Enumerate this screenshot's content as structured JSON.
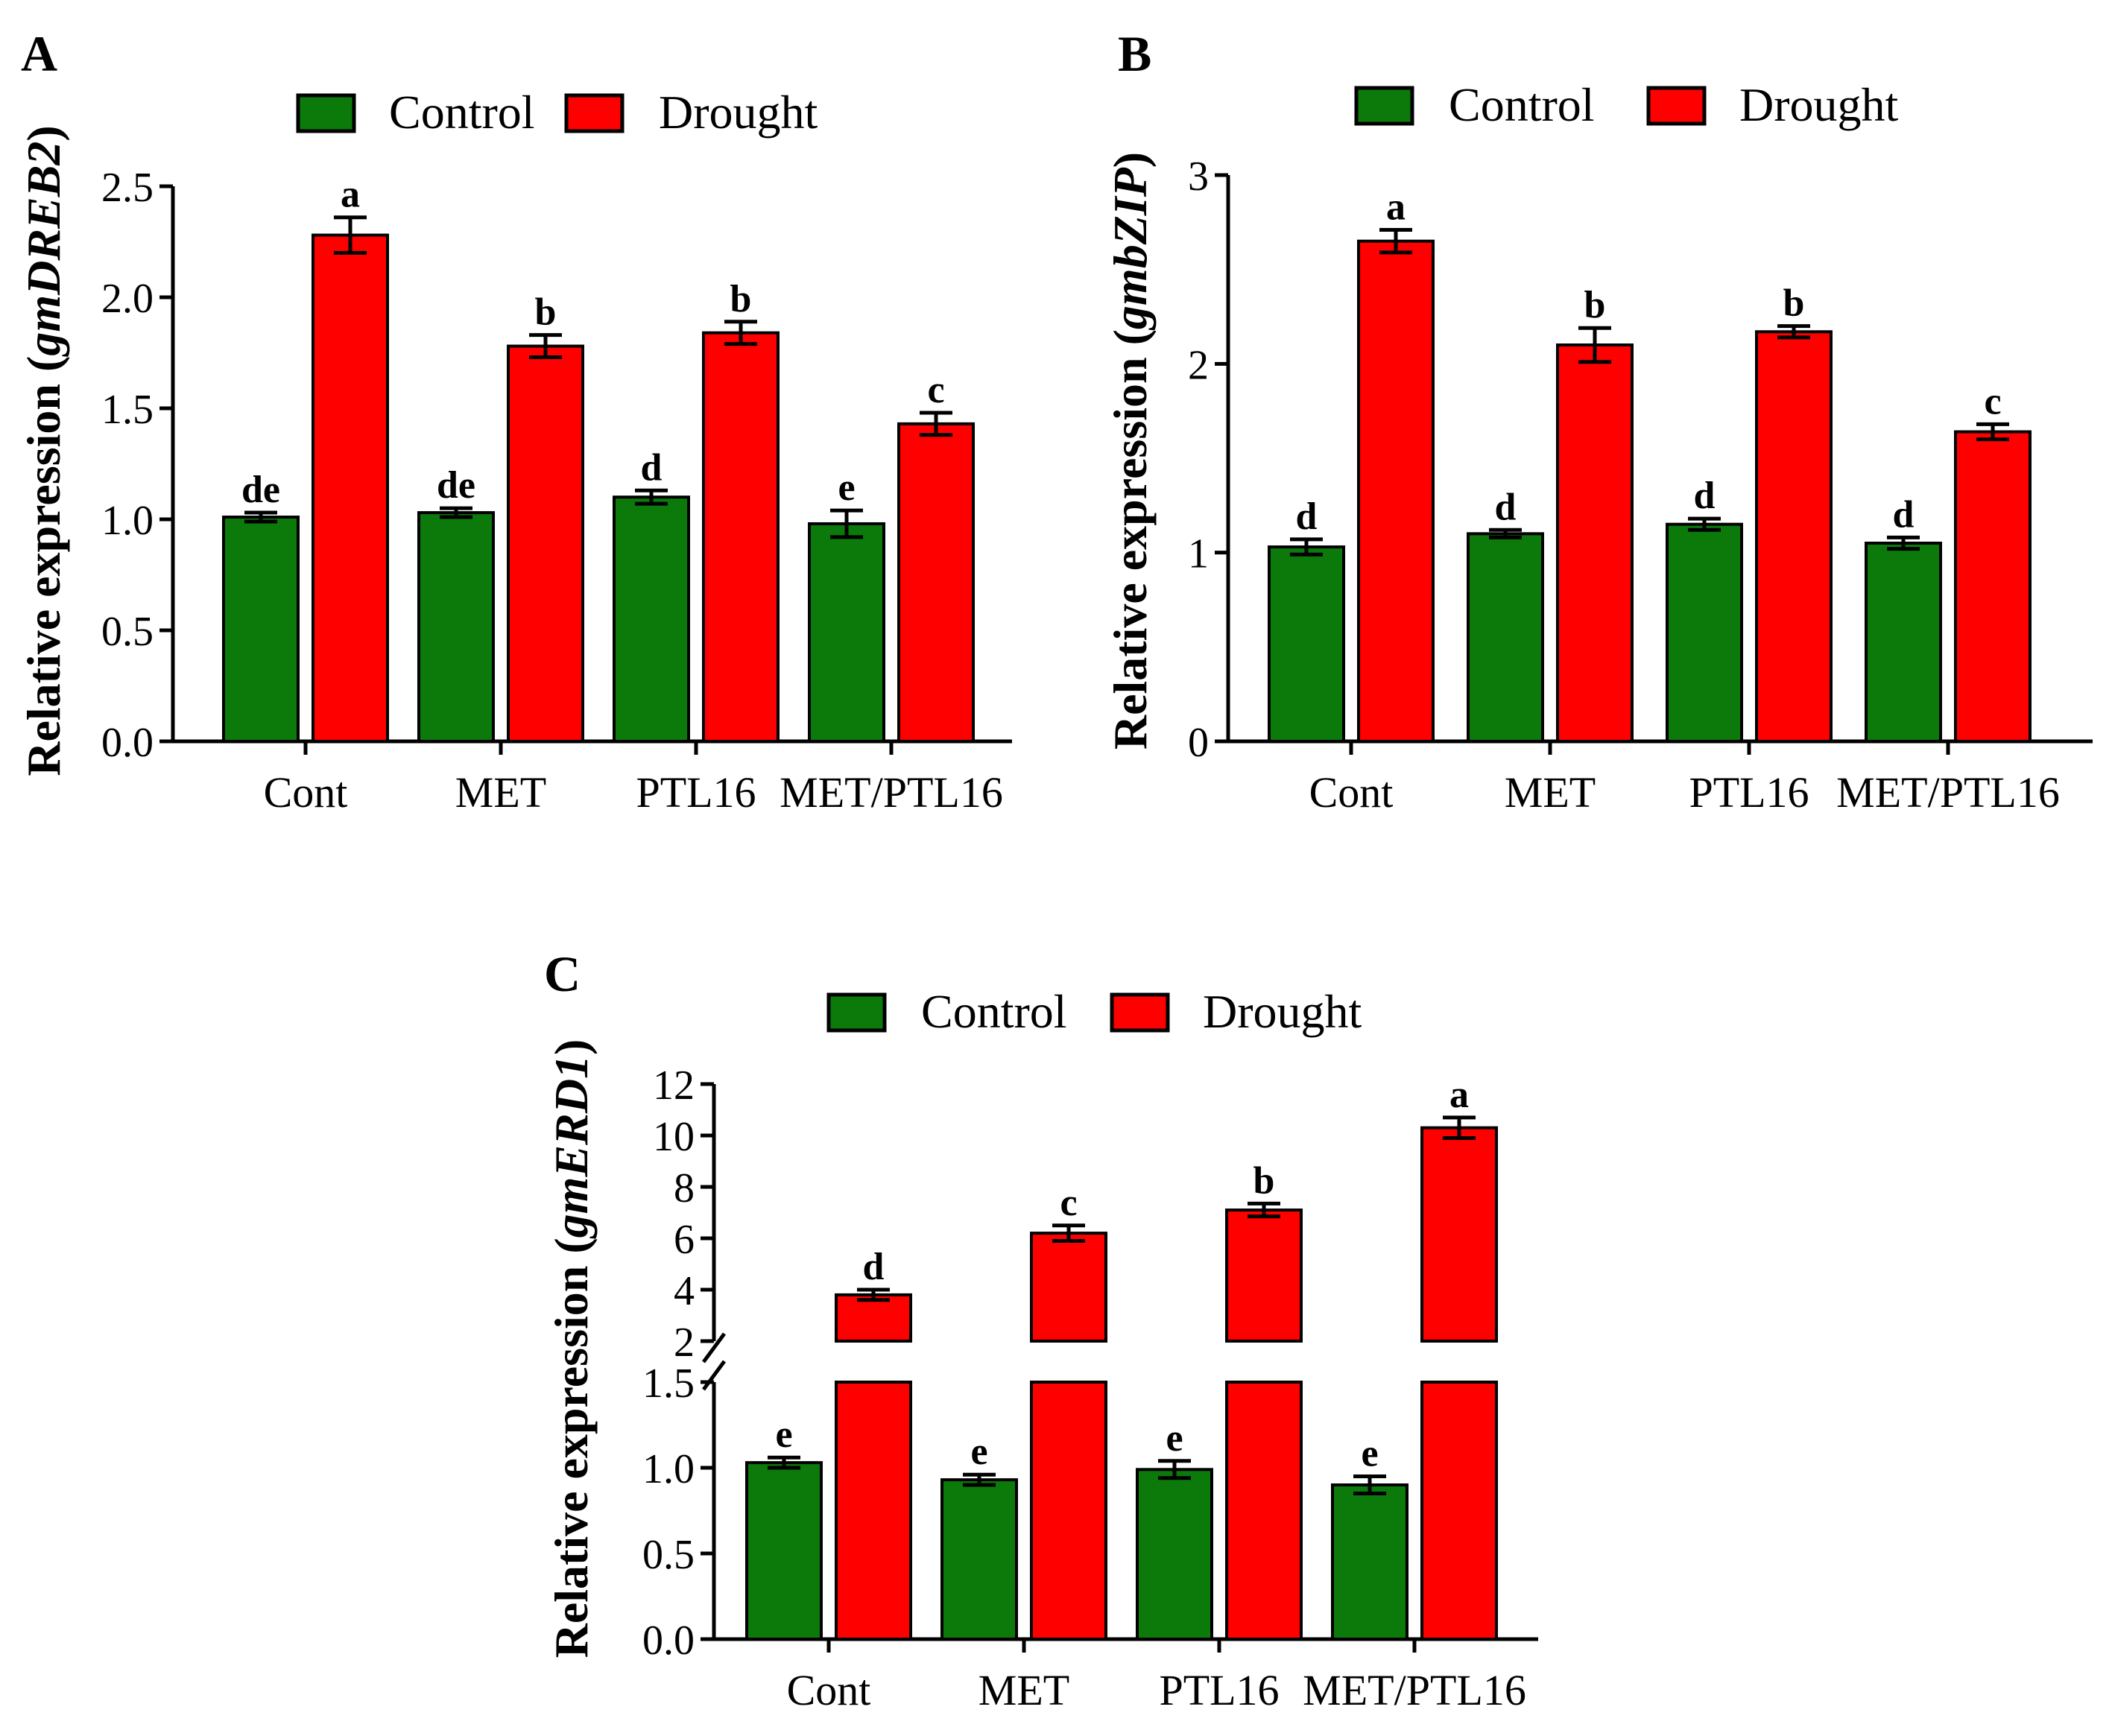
{
  "colors": {
    "control": "#0b7a0b",
    "drought": "#ff0000",
    "axis": "#000000"
  },
  "chart_data": [
    {
      "panel": "A",
      "type": "bar",
      "legend": [
        "Control",
        "Drought"
      ],
      "ylabel_prefix": "Relative expression (",
      "ylabel_gene": "gmDREB2",
      "ylabel_suffix": ")",
      "categories": [
        "Cont",
        "MET",
        "PTL16",
        "MET/PTL16"
      ],
      "ylim": [
        0,
        2.5
      ],
      "yticks": [
        0,
        0.5,
        1,
        1.5,
        2,
        2.5
      ],
      "ytick_labels": [
        "0.0",
        "0.5",
        "1.0",
        "1.5",
        "2.0",
        "2.5"
      ],
      "series": [
        {
          "name": "Control",
          "values": [
            1.01,
            1.03,
            1.1,
            0.98
          ],
          "errors": [
            0.02,
            0.02,
            0.03,
            0.06
          ],
          "letters": [
            "de",
            "de",
            "d",
            "e"
          ]
        },
        {
          "name": "Drought",
          "values": [
            2.28,
            1.78,
            1.84,
            1.43
          ],
          "errors": [
            0.08,
            0.05,
            0.05,
            0.05
          ],
          "letters": [
            "a",
            "b",
            "b",
            "c"
          ]
        }
      ]
    },
    {
      "panel": "B",
      "type": "bar",
      "legend": [
        "Control",
        "Drought"
      ],
      "ylabel_prefix": "Relative expression (",
      "ylabel_gene": "gmbZIP",
      "ylabel_suffix": ")",
      "categories": [
        "Cont",
        "MET",
        "PTL16",
        "MET/PTL16"
      ],
      "ylim": [
        0,
        3
      ],
      "yticks": [
        0,
        1,
        2,
        3
      ],
      "ytick_labels": [
        "0",
        "1",
        "2",
        "3"
      ],
      "series": [
        {
          "name": "Control",
          "values": [
            1.03,
            1.1,
            1.15,
            1.05
          ],
          "errors": [
            0.04,
            0.02,
            0.03,
            0.03
          ],
          "letters": [
            "d",
            "d",
            "d",
            "d"
          ]
        },
        {
          "name": "Drought",
          "values": [
            2.65,
            2.1,
            2.17,
            1.64
          ],
          "errors": [
            0.06,
            0.09,
            0.03,
            0.04
          ],
          "letters": [
            "a",
            "b",
            "b",
            "c"
          ]
        }
      ]
    },
    {
      "panel": "C",
      "type": "bar",
      "legend": [
        "Control",
        "Drought"
      ],
      "ylabel_prefix": "Relative expression (",
      "ylabel_gene": "gmERD1",
      "ylabel_suffix": ")",
      "categories": [
        "Cont",
        "MET",
        "PTL16",
        "MET/PTL16"
      ],
      "axis_break": true,
      "lower_ylim": [
        0,
        1.5
      ],
      "lower_yticks": [
        0,
        0.5,
        1,
        1.5
      ],
      "lower_ytick_labels": [
        "0.0",
        "0.5",
        "1.0",
        "1.5"
      ],
      "upper_ylim": [
        2,
        12
      ],
      "upper_yticks": [
        2,
        4,
        6,
        8,
        10,
        12
      ],
      "upper_ytick_labels": [
        "2",
        "4",
        "6",
        "8",
        "10",
        "12"
      ],
      "series": [
        {
          "name": "Control",
          "values": [
            1.03,
            0.93,
            0.99,
            0.9
          ],
          "errors": [
            0.03,
            0.03,
            0.05,
            0.05
          ],
          "letters": [
            "e",
            "e",
            "e",
            "e"
          ]
        },
        {
          "name": "Drought",
          "values": [
            3.8,
            6.2,
            7.1,
            10.3
          ],
          "errors": [
            0.2,
            0.3,
            0.25,
            0.4
          ],
          "letters": [
            "d",
            "c",
            "b",
            "a"
          ]
        }
      ]
    }
  ]
}
